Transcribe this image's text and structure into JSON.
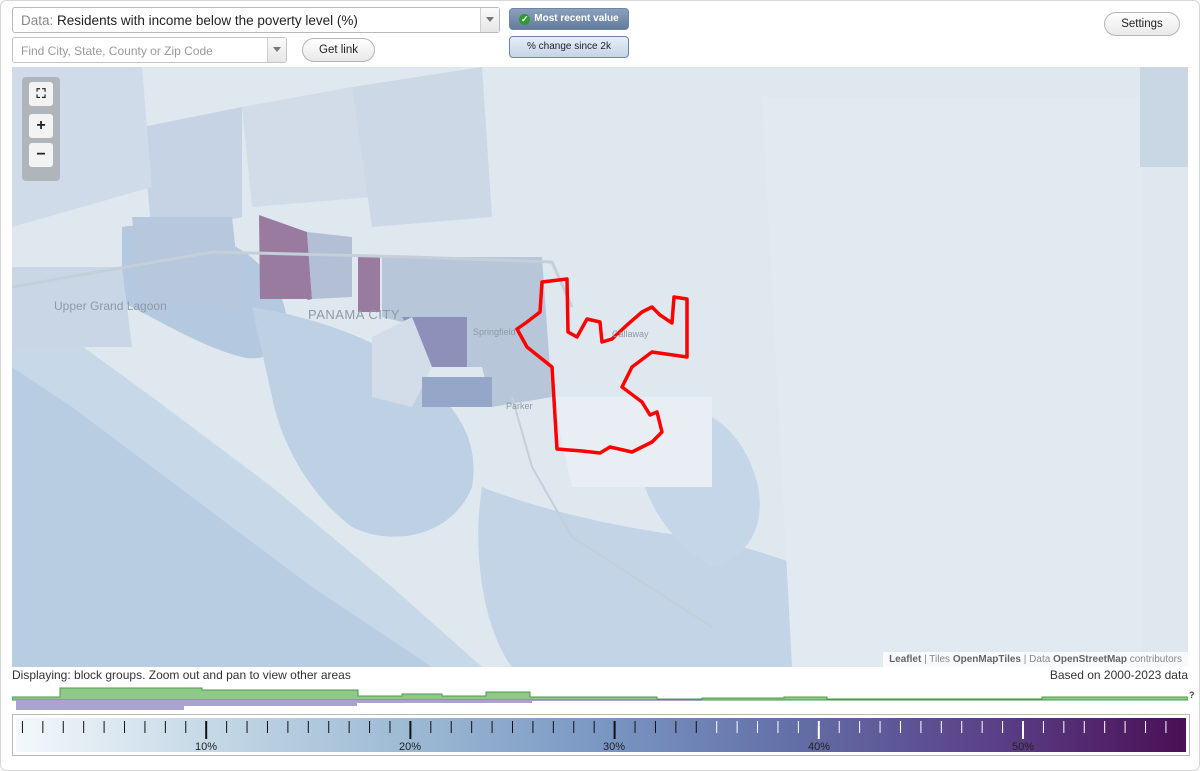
{
  "data_select": {
    "prefix": "Data:",
    "value": "Residents with income below the poverty level (%)"
  },
  "search": {
    "placeholder": "Find City, State, County or Zip Code"
  },
  "buttons": {
    "get_link": "Get link",
    "settings": "Settings"
  },
  "mode": {
    "active": "Most recent value",
    "inactive": "% change since 2k"
  },
  "map": {
    "places": [
      "Upper Grand Lagoon",
      "PANAMA CITY",
      "Springfield",
      "Parker",
      "Callaway"
    ],
    "zoom_icons": [
      "fullscreen-icon",
      "zoom-in-icon",
      "zoom-out-icon"
    ],
    "attribution": {
      "leaflet": "Leaflet",
      "tiles_prefix": "Tiles",
      "tiles": "OpenMapTiles",
      "data_prefix": "Data",
      "data": "OpenStreetMap",
      "contributors": "contributors"
    },
    "highlight_color": "#ff0000"
  },
  "footer": {
    "displaying": "Displaying: block groups. Zoom out and pan to view other areas",
    "based_on": "Based on 2000-2023 data",
    "unknown_marker": "?"
  },
  "legend": {
    "tick_labels": [
      "10%",
      "20%",
      "30%",
      "40%",
      "50%"
    ],
    "colors": {
      "low": "#f4f8fb",
      "mid": "#7a97c3",
      "high": "#4a0f55"
    }
  },
  "histogram": {
    "colors": {
      "green": "#8fc98a",
      "purple": "#a9a3d0"
    }
  }
}
